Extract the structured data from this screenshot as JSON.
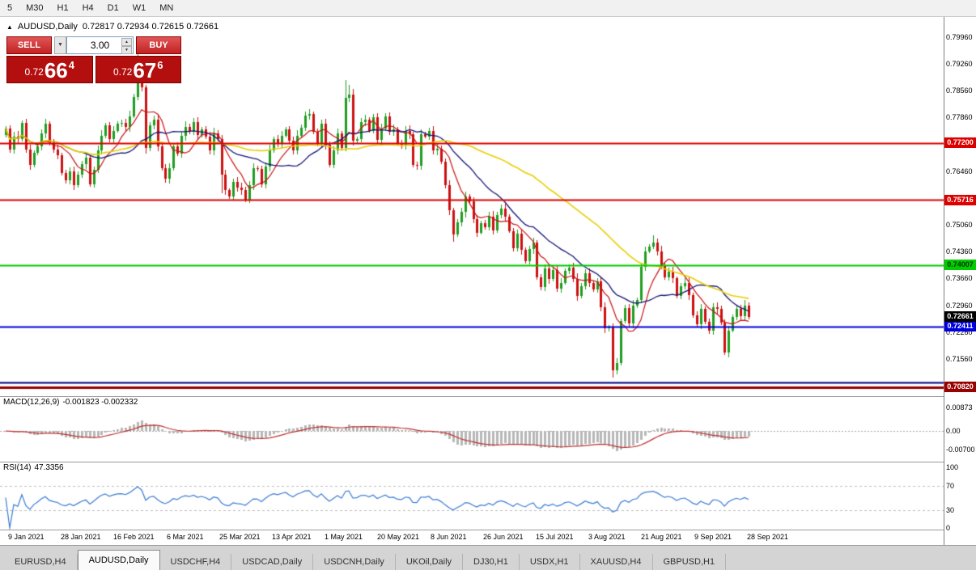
{
  "toolbar": {
    "timeframes": [
      "5",
      "M30",
      "H1",
      "H4",
      "D1",
      "W1",
      "MN"
    ]
  },
  "chart_header": {
    "collapse_icon": "▲",
    "symbol_label": "AUDUSD,Daily",
    "ohlc": "0.72817 0.72934 0.72615 0.72661"
  },
  "trade_panel": {
    "sell_label": "SELL",
    "buy_label": "BUY",
    "volume": "3.00",
    "volume_dropdown_icon": "▼",
    "spin_up_icon": "▲",
    "spin_down_icon": "▼",
    "sell_price": {
      "base": "0.72",
      "pips": "66",
      "frac": "4"
    },
    "buy_price": {
      "base": "0.72",
      "pips": "67",
      "frac": "6"
    }
  },
  "price_axis": {
    "ticks": [
      "0.79960",
      "0.79260",
      "0.78560",
      "0.77860",
      "0.77160",
      "0.76460",
      "0.75760",
      "0.75060",
      "0.74360",
      "0.73660",
      "0.72960",
      "0.72260",
      "0.71560",
      "0.70860"
    ]
  },
  "hlines": [
    {
      "price": 0.772,
      "label": "0.77200",
      "color": "#dd0000",
      "line_width": 2,
      "badge": true,
      "badge_text": "#ffffff"
    },
    {
      "price": 0.75716,
      "label": "0.75716",
      "color": "#dd0000",
      "line_width": 2,
      "badge": true,
      "badge_text": "#ffffff"
    },
    {
      "price": 0.74007,
      "label": "0.74007",
      "color": "#00cc00",
      "line_width": 2,
      "badge": true,
      "badge_text": "#003300"
    },
    {
      "price": 0.72411,
      "label": "0.72411",
      "color": "#0000dd",
      "line_width": 2,
      "badge": true,
      "badge_text": "#ffffff"
    },
    {
      "price": 0.7095,
      "label": "",
      "color": "#000080",
      "line_width": 2,
      "badge": false,
      "badge_text": ""
    },
    {
      "price": 0.7082,
      "label": "0.70820",
      "color": "#990000",
      "line_width": 3,
      "badge": true,
      "badge_text": "#ffffff"
    }
  ],
  "current_price": {
    "value": 0.72661,
    "label": "0.72661",
    "bg": "#000000",
    "text": "#ffffff"
  },
  "macd_panel": {
    "label": "MACD(12,26,9)",
    "values": "-0.001823 -0.002332",
    "params": {
      "fast": 12,
      "slow": 26,
      "signal": 9
    },
    "axis": [
      {
        "label": "0.00873",
        "value": 0.00873
      },
      {
        "label": "0.00",
        "value": 0
      },
      {
        "label": "-0.00700",
        "value": -0.007
      }
    ],
    "histogram_color": "#b8b8b8",
    "signal_color": "#c03030"
  },
  "rsi_panel": {
    "label": "RSI(14)",
    "value": "47.3356",
    "period": 14,
    "levels": [
      70,
      30
    ],
    "axis": [
      {
        "label": "100",
        "value": 100
      },
      {
        "label": "70",
        "value": 70
      },
      {
        "label": "30",
        "value": 30
      },
      {
        "label": "0",
        "value": 0
      }
    ],
    "line_color": "#3a7bd5"
  },
  "time_axis": {
    "dates": [
      "9 Jan 2021",
      "28 Jan 2021",
      "16 Feb 2021",
      "6 Mar 2021",
      "25 Mar 2021",
      "13 Apr 2021",
      "1 May 2021",
      "20 May 2021",
      "8 Jun 2021",
      "26 Jun 2021",
      "15 Jul 2021",
      "3 Aug 2021",
      "21 Aug 2021",
      "9 Sep 2021",
      "28 Sep 2021"
    ]
  },
  "bottom_tabs": {
    "tabs": [
      {
        "label": "EURUSD,H4",
        "active": false
      },
      {
        "label": "AUDUSD,Daily",
        "active": true
      },
      {
        "label": "USDCHF,H4",
        "active": false
      },
      {
        "label": "USDCAD,Daily",
        "active": false
      },
      {
        "label": "USDCNH,Daily",
        "active": false
      },
      {
        "label": "UKOil,Daily",
        "active": false
      },
      {
        "label": "DJ30,H1",
        "active": false
      },
      {
        "label": "USDX,H1",
        "active": false
      },
      {
        "label": "XAUUSD,H4",
        "active": false
      },
      {
        "label": "GBPUSD,H1",
        "active": false
      }
    ]
  },
  "chart_data": {
    "type": "candlestick",
    "symbol": "AUDUSD",
    "timeframe": "Daily",
    "ohlc_display": {
      "open": "0.72817",
      "high": "0.72934",
      "low": "0.72615",
      "close": "0.72661"
    },
    "y_axis_top": 0.80467,
    "y_axis_bottom": 0.70587,
    "first_open": 0.774,
    "candle_up_color": "#1f9e1f",
    "candle_down_color": "#cc1111",
    "moving_averages": [
      {
        "period": 8,
        "color": "#cc1111",
        "width": 1.2
      },
      {
        "period": 20,
        "color": "#15157a",
        "width": 1.3
      },
      {
        "period": 50,
        "color": "#e8cf00",
        "width": 1.6
      }
    ],
    "closes": [
      0.7758,
      0.7702,
      0.7737,
      0.773,
      0.7772,
      0.7703,
      0.7662,
      0.7695,
      0.7712,
      0.7745,
      0.777,
      0.7721,
      0.7703,
      0.7688,
      0.7641,
      0.7622,
      0.7645,
      0.761,
      0.7638,
      0.7664,
      0.7682,
      0.7612,
      0.765,
      0.7701,
      0.7739,
      0.7765,
      0.773,
      0.7752,
      0.777,
      0.7772,
      0.7762,
      0.779,
      0.784,
      0.7901,
      0.7866,
      0.7706,
      0.7765,
      0.778,
      0.7711,
      0.7655,
      0.7626,
      0.7654,
      0.7712,
      0.7692,
      0.7738,
      0.7762,
      0.7749,
      0.7775,
      0.774,
      0.7755,
      0.7737,
      0.77,
      0.7745,
      0.773,
      0.7637,
      0.7596,
      0.758,
      0.7619,
      0.7603,
      0.7598,
      0.7572,
      0.761,
      0.7655,
      0.7652,
      0.7612,
      0.7658,
      0.7701,
      0.773,
      0.7718,
      0.7738,
      0.7755,
      0.7726,
      0.7701,
      0.7739,
      0.776,
      0.7792,
      0.7796,
      0.7749,
      0.7719,
      0.777,
      0.7716,
      0.7662,
      0.7701,
      0.7745,
      0.7706,
      0.7837,
      0.7847,
      0.7725,
      0.773,
      0.7775,
      0.778,
      0.7752,
      0.7786,
      0.7728,
      0.7757,
      0.779,
      0.7749,
      0.7755,
      0.772,
      0.7713,
      0.7752,
      0.7742,
      0.7662,
      0.766,
      0.7742,
      0.7737,
      0.7752,
      0.77,
      0.7705,
      0.767,
      0.761,
      0.7544,
      0.7481,
      0.7512,
      0.7539,
      0.758,
      0.7568,
      0.752,
      0.7486,
      0.751,
      0.75,
      0.7528,
      0.7492,
      0.7532,
      0.7549,
      0.7528,
      0.749,
      0.7446,
      0.7482,
      0.744,
      0.7412,
      0.7442,
      0.746,
      0.7369,
      0.7344,
      0.7392,
      0.7365,
      0.7388,
      0.734,
      0.7355,
      0.7386,
      0.7395,
      0.7365,
      0.732,
      0.7346,
      0.738,
      0.7355,
      0.7337,
      0.7359,
      0.729,
      0.7235,
      0.7238,
      0.7126,
      0.7145,
      0.7255,
      0.7288,
      0.7248,
      0.7296,
      0.731,
      0.7397,
      0.7437,
      0.7449,
      0.746,
      0.7437,
      0.7401,
      0.7368,
      0.7384,
      0.7366,
      0.732,
      0.7346,
      0.7355,
      0.7322,
      0.727,
      0.7246,
      0.7287,
      0.7252,
      0.7229,
      0.729,
      0.7287,
      0.725,
      0.7172,
      0.723,
      0.7266,
      0.7287,
      0.7268,
      0.7296,
      0.7266
    ],
    "spikes": {
      "33": {
        "high": 0.7952
      },
      "34": {
        "high": 0.794
      },
      "35": {
        "low": 0.7692
      },
      "54": {
        "low": 0.7588
      },
      "85": {
        "high": 0.7885
      },
      "86": {
        "high": 0.7872
      },
      "112": {
        "low": 0.7462
      },
      "152": {
        "low": 0.7106
      },
      "162": {
        "high": 0.7478
      },
      "180": {
        "low": 0.7168
      }
    }
  }
}
